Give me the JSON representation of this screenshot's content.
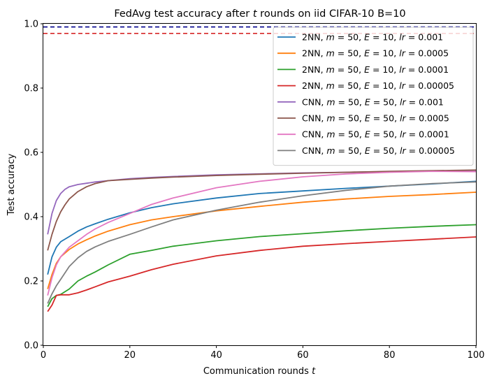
{
  "chart_data": {
    "type": "line",
    "title": "FedAvg test accuracy after t rounds on iid CIFAR-10 B=10",
    "title_parts": [
      "FedAvg test accuracy after ",
      "t",
      " rounds on iid CIFAR-10 B=10"
    ],
    "xlabel": "Communication rounds t",
    "xlabel_parts": [
      "Communication rounds ",
      "t"
    ],
    "ylabel": "Test accuracy",
    "xlim": [
      0,
      100
    ],
    "ylim": [
      0.0,
      1.0
    ],
    "xticks": [
      "0",
      "20",
      "40",
      "60",
      "80",
      "100"
    ],
    "yticks": [
      "0.0",
      "0.2",
      "0.4",
      "0.6",
      "0.8",
      "1.0"
    ],
    "grid": false,
    "legend_position": "upper right",
    "reference_lines": [
      {
        "y": 0.99,
        "color": "#00008b",
        "style": "dashed"
      },
      {
        "y": 0.97,
        "color": "#d62728",
        "style": "dashed"
      }
    ],
    "series": [
      {
        "name": "2NN, m = 50, E = 10, lr = 0.001",
        "name_parts": [
          "2NN, ",
          "m",
          " = 50, ",
          "E",
          " = 10, ",
          "lr",
          " = 0.001"
        ],
        "color": "#1f77b4",
        "x": [
          1,
          2,
          3,
          4,
          6,
          8,
          10,
          12,
          15,
          20,
          25,
          30,
          40,
          50,
          60,
          70,
          80,
          90,
          100
        ],
        "values": [
          0.22,
          0.275,
          0.305,
          0.322,
          0.338,
          0.355,
          0.368,
          0.378,
          0.392,
          0.412,
          0.428,
          0.44,
          0.458,
          0.472,
          0.48,
          0.488,
          0.495,
          0.502,
          0.51
        ]
      },
      {
        "name": "2NN, m = 50, E = 10, lr = 0.0005",
        "name_parts": [
          "2NN, ",
          "m",
          " = 50, ",
          "E",
          " = 10, ",
          "lr",
          " = 0.0005"
        ],
        "color": "#ff7f0e",
        "x": [
          1,
          2,
          3,
          4,
          6,
          8,
          10,
          12,
          15,
          20,
          25,
          30,
          40,
          50,
          60,
          70,
          80,
          90,
          100
        ],
        "values": [
          0.175,
          0.22,
          0.255,
          0.275,
          0.298,
          0.315,
          0.328,
          0.34,
          0.355,
          0.375,
          0.39,
          0.4,
          0.418,
          0.432,
          0.445,
          0.455,
          0.463,
          0.469,
          0.476
        ]
      },
      {
        "name": "2NN, m = 50, E = 10, lr = 0.0001",
        "name_parts": [
          "2NN, ",
          "m",
          " = 50, ",
          "E",
          " = 10, ",
          "lr",
          " = 0.0001"
        ],
        "color": "#2ca02c",
        "x": [
          1,
          2,
          3,
          4,
          6,
          8,
          10,
          12,
          15,
          20,
          25,
          30,
          40,
          50,
          60,
          70,
          80,
          90,
          100
        ],
        "values": [
          0.12,
          0.145,
          0.155,
          0.158,
          0.175,
          0.2,
          0.215,
          0.228,
          0.25,
          0.283,
          0.295,
          0.308,
          0.325,
          0.338,
          0.347,
          0.356,
          0.364,
          0.37,
          0.375
        ]
      },
      {
        "name": "2NN, m = 50, E = 10, lr = 0.00005",
        "name_parts": [
          "2NN, ",
          "m",
          " = 50, ",
          "E",
          " = 10, ",
          "lr",
          " = 0.00005"
        ],
        "color": "#d62728",
        "x": [
          1,
          2,
          3,
          4,
          6,
          8,
          10,
          12,
          15,
          20,
          25,
          30,
          40,
          50,
          60,
          70,
          80,
          90,
          100
        ],
        "values": [
          0.105,
          0.125,
          0.155,
          0.157,
          0.157,
          0.163,
          0.172,
          0.182,
          0.197,
          0.215,
          0.235,
          0.252,
          0.278,
          0.295,
          0.308,
          0.316,
          0.323,
          0.33,
          0.337
        ]
      },
      {
        "name": "CNN, m = 50, E = 50, lr = 0.001",
        "name_parts": [
          "CNN, ",
          "m",
          " = 50, ",
          "E",
          " = 50, ",
          "lr",
          " = 0.001"
        ],
        "color": "#9467bd",
        "x": [
          1,
          2,
          3,
          4,
          5,
          6,
          8,
          10,
          12,
          15,
          20,
          25,
          30,
          40,
          50,
          60,
          70,
          80,
          90,
          100
        ],
        "values": [
          0.345,
          0.41,
          0.45,
          0.472,
          0.485,
          0.493,
          0.5,
          0.504,
          0.508,
          0.512,
          0.518,
          0.522,
          0.525,
          0.53,
          0.533,
          0.536,
          0.538,
          0.54,
          0.542,
          0.544
        ]
      },
      {
        "name": "CNN, m = 50, E = 50, lr = 0.0005",
        "name_parts": [
          "CNN, ",
          "m",
          " = 50, ",
          "E",
          " = 50, ",
          "lr",
          " = 0.0005"
        ],
        "color": "#8c564b",
        "x": [
          1,
          2,
          3,
          4,
          5,
          6,
          8,
          10,
          12,
          15,
          20,
          25,
          30,
          40,
          50,
          60,
          70,
          80,
          90,
          100
        ],
        "values": [
          0.295,
          0.345,
          0.385,
          0.415,
          0.437,
          0.455,
          0.478,
          0.493,
          0.503,
          0.512,
          0.516,
          0.52,
          0.523,
          0.528,
          0.532,
          0.535,
          0.538,
          0.541,
          0.543,
          0.545
        ]
      },
      {
        "name": "CNN, m = 50, E = 50, lr = 0.0001",
        "name_parts": [
          "CNN, ",
          "m",
          " = 50, ",
          "E",
          " = 50, ",
          "lr",
          " = 0.0001"
        ],
        "color": "#e377c2",
        "x": [
          1,
          2,
          3,
          4,
          6,
          8,
          10,
          12,
          15,
          20,
          25,
          30,
          40,
          50,
          60,
          70,
          80,
          90,
          100
        ],
        "values": [
          0.155,
          0.21,
          0.25,
          0.275,
          0.305,
          0.325,
          0.345,
          0.362,
          0.382,
          0.41,
          0.438,
          0.458,
          0.49,
          0.51,
          0.524,
          0.533,
          0.538,
          0.541,
          0.54
        ]
      },
      {
        "name": "CNN, m = 50, E = 50, lr = 0.00005",
        "name_parts": [
          "CNN, ",
          "m",
          " = 50, ",
          "E",
          " = 50, ",
          "lr",
          " = 0.00005"
        ],
        "color": "#7f7f7f",
        "x": [
          1,
          2,
          3,
          4,
          6,
          8,
          10,
          12,
          15,
          20,
          25,
          30,
          40,
          50,
          60,
          70,
          80,
          90,
          100
        ],
        "values": [
          0.13,
          0.16,
          0.185,
          0.205,
          0.245,
          0.272,
          0.292,
          0.306,
          0.323,
          0.345,
          0.368,
          0.39,
          0.42,
          0.445,
          0.465,
          0.482,
          0.495,
          0.503,
          0.508
        ]
      }
    ]
  }
}
